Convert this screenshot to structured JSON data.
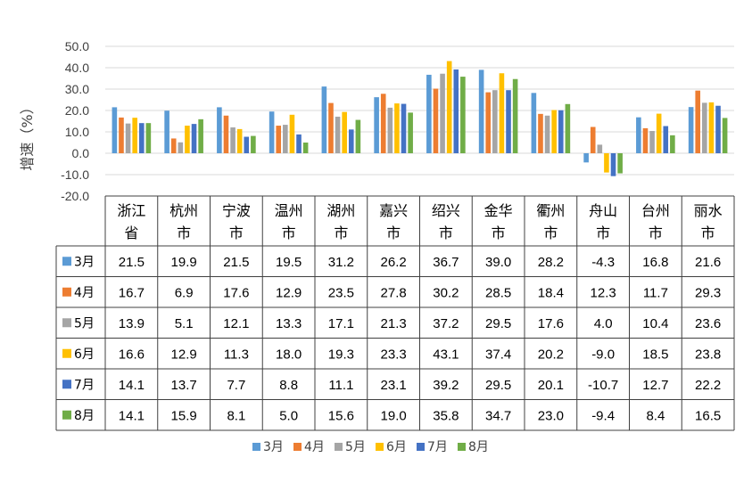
{
  "chart_data": {
    "type": "bar",
    "ylabel": "增速（%）",
    "ylim": [
      -20,
      50
    ],
    "ytick_step": 10,
    "yticks": [
      "50.0",
      "40.0",
      "30.0",
      "20.0",
      "10.0",
      "0.0",
      "-10.0",
      "-20.0"
    ],
    "grid": true,
    "legend_position": "bottom",
    "categories": [
      [
        "浙江",
        "省"
      ],
      [
        "杭州",
        "市"
      ],
      [
        "宁波",
        "市"
      ],
      [
        "温州",
        "市"
      ],
      [
        "湖州",
        "市"
      ],
      [
        "嘉兴",
        "市"
      ],
      [
        "绍兴",
        "市"
      ],
      [
        "金华",
        "市"
      ],
      [
        "衢州",
        "市"
      ],
      [
        "舟山",
        "市"
      ],
      [
        "台州",
        "市"
      ],
      [
        "丽水",
        "市"
      ]
    ],
    "series": [
      {
        "name": "3月",
        "color": "#5B9BD5",
        "values": [
          21.5,
          19.9,
          21.5,
          19.5,
          31.2,
          26.2,
          36.7,
          39.0,
          28.2,
          -4.3,
          16.8,
          21.6
        ],
        "labels": [
          "21.5",
          "19.9",
          "21.5",
          "19.5",
          "31.2",
          "26.2",
          "36.7",
          "39.0",
          "28.2",
          "-4.3",
          "16.8",
          "21.6"
        ]
      },
      {
        "name": "4月",
        "color": "#ED7D31",
        "values": [
          16.7,
          6.9,
          17.6,
          12.9,
          23.5,
          27.8,
          30.2,
          28.5,
          18.4,
          12.3,
          11.7,
          29.3
        ],
        "labels": [
          "16.7",
          "6.9",
          "17.6",
          "12.9",
          "23.5",
          "27.8",
          "30.2",
          "28.5",
          "18.4",
          "12.3",
          "11.7",
          "29.3"
        ]
      },
      {
        "name": "5月",
        "color": "#A5A5A5",
        "values": [
          13.9,
          5.1,
          12.1,
          13.3,
          17.1,
          21.3,
          37.2,
          29.5,
          17.6,
          4.0,
          10.4,
          23.6
        ],
        "labels": [
          "13.9",
          "5.1",
          "12.1",
          "13.3",
          "17.1",
          "21.3",
          "37.2",
          "29.5",
          "17.6",
          "4.0",
          "10.4",
          "23.6"
        ]
      },
      {
        "name": "6月",
        "color": "#FFC000",
        "values": [
          16.6,
          12.9,
          11.3,
          18.0,
          19.3,
          23.3,
          43.1,
          37.4,
          20.2,
          -9.0,
          18.5,
          23.8
        ],
        "labels": [
          "16.6",
          "12.9",
          "11.3",
          "18.0",
          "19.3",
          "23.3",
          "43.1",
          "37.4",
          "20.2",
          "-9.0",
          "18.5",
          "23.8"
        ]
      },
      {
        "name": "7月",
        "color": "#4472C4",
        "values": [
          14.1,
          13.7,
          7.7,
          8.8,
          11.1,
          23.1,
          39.2,
          29.5,
          20.1,
          -10.7,
          12.7,
          22.2
        ],
        "labels": [
          "14.1",
          "13.7",
          "7.7",
          "8.8",
          "11.1",
          "23.1",
          "39.2",
          "29.5",
          "20.1",
          "-10.7",
          "12.7",
          "22.2"
        ]
      },
      {
        "name": "8月",
        "color": "#70AD47",
        "values": [
          14.1,
          15.9,
          8.1,
          5.0,
          15.6,
          19.0,
          35.8,
          34.7,
          23.0,
          -9.4,
          8.4,
          16.5
        ],
        "labels": [
          "14.1",
          "15.9",
          "8.1",
          "5.0",
          "15.6",
          "19.0",
          "35.8",
          "34.7",
          "23.0",
          "-9.4",
          "8.4",
          "16.5"
        ]
      }
    ]
  }
}
